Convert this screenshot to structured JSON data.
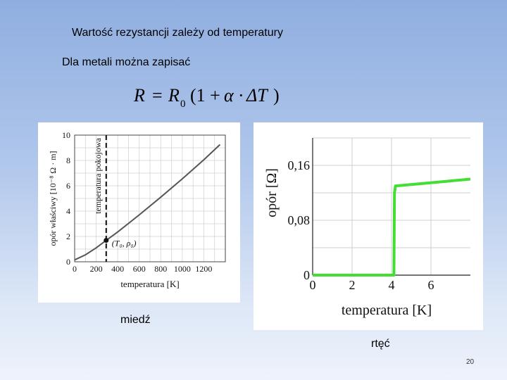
{
  "slide": {
    "title": "Wartość rezystancji zależy od temperatury",
    "subtitle": "Dla metali można zapisać",
    "formula": {
      "lhs": "R",
      "eq": "=",
      "r0": "R",
      "r0_sub": "0",
      "open": "(1 +",
      "alpha": "α",
      "dot": "·",
      "delta_t": "ΔT",
      "close": ")"
    },
    "copper_label": "miedź",
    "mercury_label": "rtęć",
    "page_number": "20"
  },
  "chart_data": [
    {
      "type": "line",
      "xlabel": "temperatura [K]",
      "ylabel": "opór właściwy [10⁻⁸ Ω · m]",
      "xlim": [
        0,
        1400
      ],
      "ylim": [
        0,
        10
      ],
      "x_ticks": [
        "0",
        "200",
        "400",
        "600",
        "800",
        "1000",
        "1200"
      ],
      "y_ticks": [
        "0",
        "2",
        "4",
        "6",
        "8",
        "10"
      ],
      "grid": true,
      "series": [
        {
          "x": [
            0,
            100,
            200,
            293,
            400,
            600,
            800,
            1000,
            1200,
            1350
          ],
          "y": [
            0.15,
            0.55,
            1.1,
            1.69,
            2.35,
            3.7,
            5.1,
            6.55,
            8.05,
            9.25
          ]
        }
      ],
      "annotations": {
        "vline_x": 293,
        "vline_label": "temperatura pokojowa",
        "point": {
          "x": 293,
          "y": 1.69,
          "label": "(T₀, ρ₀)"
        }
      },
      "line_color": "#555555"
    },
    {
      "type": "line",
      "xlabel": "temperatura [K]",
      "ylabel": "opór [Ω]",
      "xlim": [
        0,
        8
      ],
      "ylim": [
        0,
        0.2
      ],
      "x_ticks": [
        "0",
        "2",
        "4",
        "6"
      ],
      "y_ticks": [
        "0",
        "0,08",
        "0,16"
      ],
      "grid": true,
      "series": [
        {
          "x": [
            0,
            3.9,
            4.12,
            4.15,
            4.2,
            8
          ],
          "y": [
            0.0,
            0.0,
            0.0,
            0.12,
            0.13,
            0.14
          ]
        }
      ],
      "line_color": "#44dd33"
    }
  ]
}
